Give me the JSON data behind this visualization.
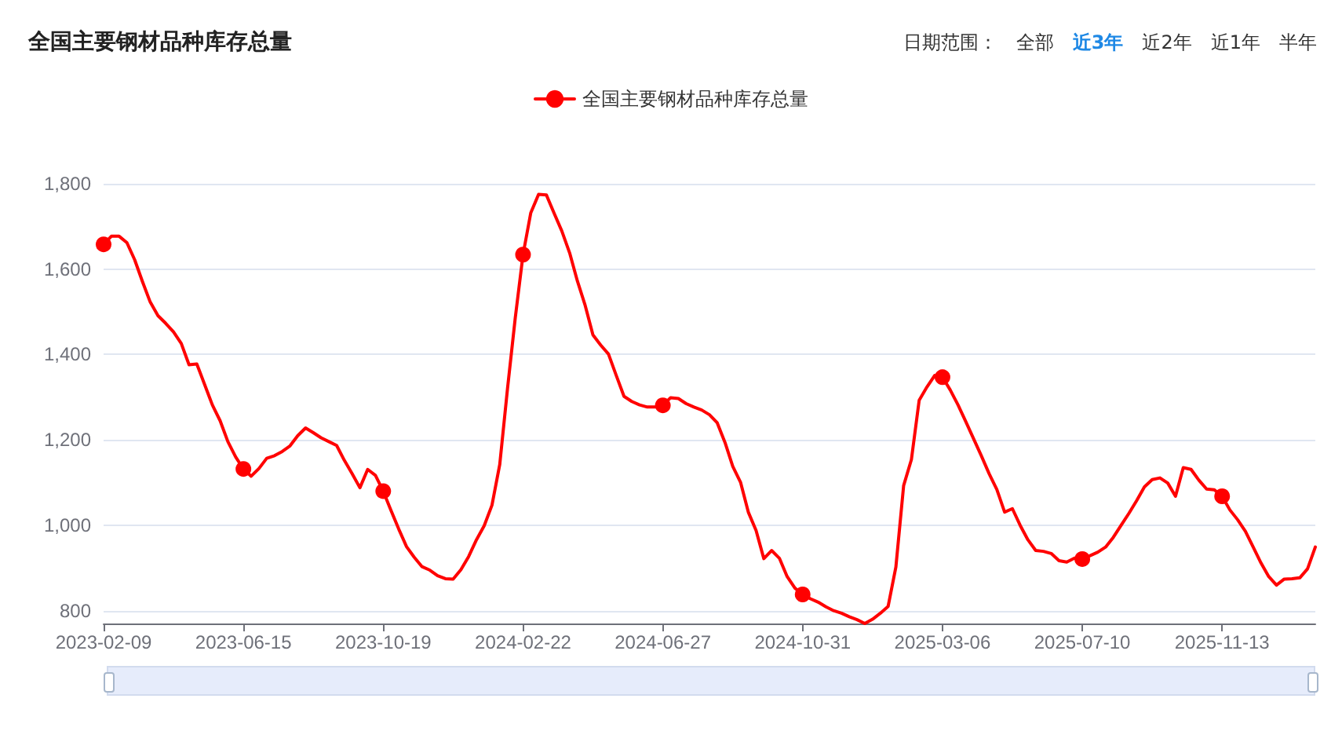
{
  "chart_data": {
    "type": "line",
    "title": "全国主要钢材品种库存总量",
    "annotations": [
      "日期范围：",
      "全部",
      "近3年",
      "近2年",
      "近1年",
      "半年"
    ],
    "categories": [
      "2023-02-09",
      null,
      null,
      null,
      null,
      null,
      null,
      null,
      null,
      null,
      null,
      null,
      null,
      null,
      null,
      null,
      null,
      null,
      "2023-06-15",
      null,
      null,
      null,
      null,
      null,
      null,
      null,
      null,
      null,
      null,
      null,
      null,
      null,
      null,
      null,
      null,
      null,
      "2023-10-19",
      null,
      null,
      null,
      null,
      null,
      null,
      null,
      null,
      null,
      null,
      null,
      null,
      null,
      null,
      null,
      null,
      null,
      "2024-02-22",
      null,
      null,
      null,
      null,
      null,
      null,
      null,
      null,
      null,
      null,
      null,
      null,
      null,
      null,
      null,
      null,
      null,
      "2024-06-27",
      null,
      null,
      null,
      null,
      null,
      null,
      null,
      null,
      null,
      null,
      null,
      null,
      null,
      null,
      null,
      null,
      null,
      "2024-10-31",
      null,
      null,
      null,
      null,
      null,
      null,
      null,
      null,
      null,
      null,
      null,
      null,
      null,
      null,
      null,
      null,
      null,
      "2025-03-06",
      null,
      null,
      null,
      null,
      null,
      null,
      null,
      null,
      null,
      null,
      null,
      null,
      null,
      null,
      null,
      null,
      null,
      "2025-07-10",
      null,
      null,
      null,
      null,
      null,
      null,
      null,
      null,
      null,
      null,
      null,
      null,
      null,
      null,
      null,
      null,
      null,
      "2025-11-13",
      null,
      null,
      null,
      null,
      null,
      null,
      null,
      null,
      null,
      null,
      null,
      null
    ],
    "series": [
      {
        "name": "全国主要钢材品种库存总量",
        "color": "#ff0000",
        "values": [
          1658,
          1677,
          1677,
          1662,
          1622,
          1571,
          1523,
          1491,
          1473,
          1453,
          1426,
          1376,
          1378,
          1330,
          1282,
          1245,
          1196,
          1160,
          1132,
          1115,
          1133,
          1157,
          1163,
          1173,
          1186,
          1210,
          1228,
          1217,
          1205,
          1196,
          1187,
          1152,
          1121,
          1088,
          1131,
          1117,
          1080,
          1035,
          991,
          950,
          925,
          903,
          895,
          882,
          875,
          874,
          896,
          927,
          966,
          999,
          1047,
          1142,
          1320,
          1486,
          1634,
          1732,
          1775,
          1774,
          1731,
          1689,
          1638,
          1572,
          1515,
          1446,
          1422,
          1401,
          1351,
          1302,
          1290,
          1282,
          1277,
          1277,
          1281,
          1299,
          1297,
          1285,
          1277,
          1270,
          1259,
          1240,
          1194,
          1138,
          1101,
          1031,
          988,
          922,
          941,
          923,
          880,
          853,
          838,
          828,
          820,
          809,
          800,
          794,
          786,
          779,
          770,
          780,
          794,
          810,
          902,
          1093,
          1154,
          1293,
          1324,
          1351,
          1347,
          1317,
          1282,
          1243,
          1203,
          1163,
          1121,
          1084,
          1031,
          1039,
          1000,
          966,
          941,
          939,
          934,
          917,
          914,
          923,
          921,
          929,
          937,
          949,
          972,
          1000,
          1028,
          1058,
          1090,
          1107,
          1111,
          1099,
          1068,
          1135,
          1131,
          1106,
          1085,
          1083,
          1068,
          1036,
          1013,
          986,
          949,
          912,
          880,
          860,
          874,
          875,
          877,
          898,
          949
        ]
      }
    ],
    "ylim": [
      770,
      1800
    ],
    "yticks": [
      {
        "value": 800,
        "label": "800"
      },
      {
        "value": 1000,
        "label": "1,000"
      },
      {
        "value": 1200,
        "label": "1,200"
      },
      {
        "value": 1400,
        "label": "1,400"
      },
      {
        "value": 1600,
        "label": "1,600"
      },
      {
        "value": 1800,
        "label": "1,800"
      }
    ],
    "grid": "y",
    "legend": "top",
    "line_style": "solid"
  }
}
